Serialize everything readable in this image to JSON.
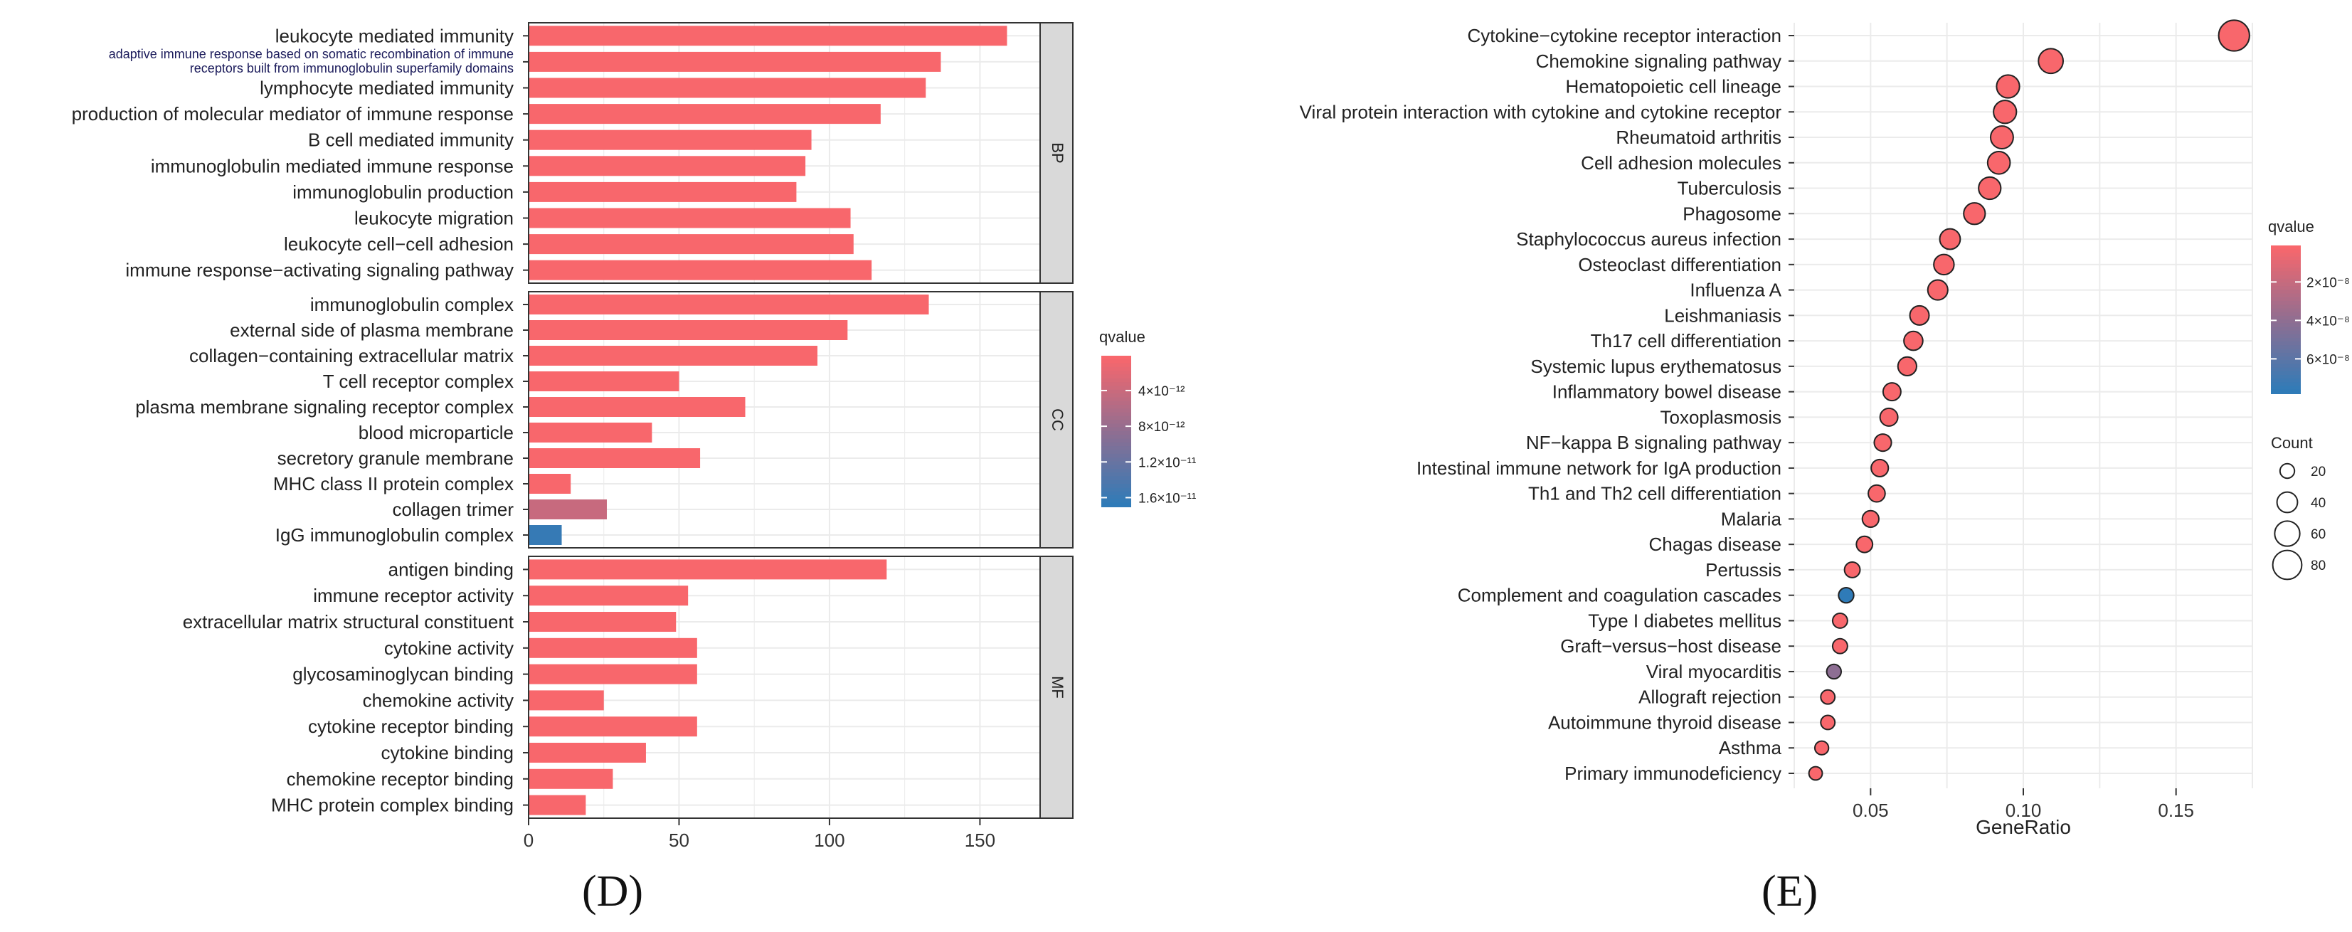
{
  "panel_labels": {
    "left": "(D)",
    "right": "(E)"
  },
  "colors": {
    "high": "#F8676C",
    "low": "#2A7CBA",
    "mid": "#8E6E92",
    "grid": "#EBEBEB",
    "strip": "#D9D9D9"
  },
  "chart_data": [
    {
      "type": "bar",
      "orientation": "horizontal",
      "title": "",
      "xlabel": "",
      "ylabel": "",
      "xlim": [
        0,
        170
      ],
      "x_ticks": [
        "0",
        "50",
        "100",
        "150"
      ],
      "legend": {
        "title": "qvalue",
        "ticks": [
          "4×10⁻¹²",
          "8×10⁻¹²",
          "1.2×10⁻¹¹",
          "1.6×10⁻¹¹"
        ],
        "range": [
          1e-13,
          1.7e-11
        ],
        "tick_values": [
          4e-12,
          8e-12,
          1.2e-11,
          1.6e-11
        ]
      },
      "facets": [
        {
          "name": "BP",
          "categories": [
            "leukocyte mediated immunity",
            "adaptive immune response based on somatic recombination of immune receptors built from immunoglobulin superfamily domains",
            "lymphocyte mediated immunity",
            "production of molecular mediator of immune response",
            "B cell mediated immunity",
            "immunoglobulin mediated immune response",
            "immunoglobulin production",
            "leukocyte migration",
            "leukocyte cell-cell adhesion",
            "immune response-activating signaling pathway"
          ],
          "category_lines": [
            [
              "leukocyte mediated immunity"
            ],
            [
              "adaptive immune response based on somatic recombination of immune",
              "receptors built from immunoglobulin superfamily domains"
            ],
            [
              "lymphocyte mediated immunity"
            ],
            [
              "production of molecular mediator of immune response"
            ],
            [
              "B cell mediated immunity"
            ],
            [
              "immunoglobulin mediated immune response"
            ],
            [
              "immunoglobulin production"
            ],
            [
              "leukocyte migration"
            ],
            [
              "leukocyte cell−cell adhesion"
            ],
            [
              "immune response−activating signaling pathway"
            ]
          ],
          "values": [
            159,
            137,
            132,
            117,
            94,
            92,
            89,
            107,
            108,
            114
          ],
          "qvalues": [
            1e-13,
            1e-13,
            1e-13,
            1e-13,
            1e-13,
            1e-13,
            1e-13,
            1e-13,
            1e-13,
            1e-13
          ]
        },
        {
          "name": "CC",
          "categories": [
            "immunoglobulin complex",
            "external side of plasma membrane",
            "collagen-containing extracellular matrix",
            "T cell receptor complex",
            "plasma membrane signaling receptor complex",
            "blood microparticle",
            "secretory granule membrane",
            "MHC class II protein complex",
            "collagen trimer",
            "IgG immunoglobulin complex"
          ],
          "category_lines": [
            [
              "immunoglobulin complex"
            ],
            [
              "external side of plasma membrane"
            ],
            [
              "collagen−containing extracellular matrix"
            ],
            [
              "T cell receptor complex"
            ],
            [
              "plasma membrane signaling receptor complex"
            ],
            [
              "blood microparticle"
            ],
            [
              "secretory granule membrane"
            ],
            [
              "MHC class II protein complex"
            ],
            [
              "collagen trimer"
            ],
            [
              "IgG immunoglobulin complex"
            ]
          ],
          "values": [
            133,
            106,
            96,
            50,
            72,
            41,
            57,
            14,
            26,
            11
          ],
          "qvalues": [
            1e-13,
            1e-13,
            1e-13,
            1e-13,
            1e-13,
            1e-13,
            1e-13,
            1e-13,
            4e-12,
            1.6e-11
          ]
        },
        {
          "name": "MF",
          "categories": [
            "antigen binding",
            "immune receptor activity",
            "extracellular matrix structural constituent",
            "cytokine activity",
            "glycosaminoglycan binding",
            "chemokine activity",
            "cytokine receptor binding",
            "cytokine binding",
            "chemokine receptor binding",
            "MHC protein complex binding"
          ],
          "category_lines": [
            [
              "antigen binding"
            ],
            [
              "immune receptor activity"
            ],
            [
              "extracellular matrix structural constituent"
            ],
            [
              "cytokine activity"
            ],
            [
              "glycosaminoglycan binding"
            ],
            [
              "chemokine activity"
            ],
            [
              "cytokine receptor binding"
            ],
            [
              "cytokine binding"
            ],
            [
              "chemokine receptor binding"
            ],
            [
              "MHC protein complex binding"
            ]
          ],
          "values": [
            119,
            53,
            49,
            56,
            56,
            25,
            56,
            39,
            28,
            19
          ],
          "qvalues": [
            1e-13,
            1e-13,
            1e-13,
            1e-13,
            1e-13,
            1e-13,
            1e-13,
            1e-13,
            1e-13,
            1e-13
          ]
        }
      ]
    },
    {
      "type": "scatter",
      "title": "",
      "xlabel": "GeneRatio",
      "ylabel": "",
      "xlim": [
        0.025,
        0.175
      ],
      "x_ticks": [
        0.05,
        0.1,
        0.15
      ],
      "x_tick_labels": [
        "0.05",
        "0.10",
        "0.15"
      ],
      "categories": [
        "Cytokine-cytokine receptor interaction",
        "Chemokine signaling pathway",
        "Hematopoietic cell lineage",
        "Viral protein interaction with cytokine and cytokine receptor",
        "Rheumatoid arthritis",
        "Cell adhesion molecules",
        "Tuberculosis",
        "Phagosome",
        "Staphylococcus aureus infection",
        "Osteoclast differentiation",
        "Influenza A",
        "Leishmaniasis",
        "Th17 cell differentiation",
        "Systemic lupus erythematosus",
        "Inflammatory bowel disease",
        "Toxoplasmosis",
        "NF-kappa B signaling pathway",
        "Intestinal immune network for IgA production",
        "Th1 and Th2 cell differentiation",
        "Malaria",
        "Chagas disease",
        "Pertussis",
        "Complement and coagulation cascades",
        "Type I diabetes mellitus",
        "Graft-versus-host disease",
        "Viral myocarditis",
        "Allograft rejection",
        "Autoimmune thyroid disease",
        "Asthma",
        "Primary immunodeficiency"
      ],
      "category_labels": [
        "Cytokine−cytokine receptor interaction",
        "Chemokine signaling pathway",
        "Hematopoietic cell lineage",
        "Viral protein interaction with cytokine and cytokine receptor",
        "Rheumatoid arthritis",
        "Cell adhesion molecules",
        "Tuberculosis",
        "Phagosome",
        "Staphylococcus aureus infection",
        "Osteoclast differentiation",
        "Influenza A",
        "Leishmaniasis",
        "Th17 cell differentiation",
        "Systemic lupus erythematosus",
        "Inflammatory bowel disease",
        "Toxoplasmosis",
        "NF−kappa B signaling pathway",
        "Intestinal immune network for IgA production",
        "Th1 and Th2 cell differentiation",
        "Malaria",
        "Chagas disease",
        "Pertussis",
        "Complement and coagulation cascades",
        "Type I diabetes mellitus",
        "Graft−versus−host disease",
        "Viral myocarditis",
        "Allograft rejection",
        "Autoimmune thyroid disease",
        "Asthma",
        "Primary immunodeficiency"
      ],
      "x": [
        0.169,
        0.109,
        0.095,
        0.094,
        0.093,
        0.092,
        0.089,
        0.084,
        0.076,
        0.074,
        0.072,
        0.066,
        0.064,
        0.062,
        0.057,
        0.056,
        0.054,
        0.053,
        0.052,
        0.05,
        0.048,
        0.044,
        0.042,
        0.04,
        0.04,
        0.038,
        0.036,
        0.036,
        0.034,
        0.032
      ],
      "count": [
        90,
        58,
        50,
        50,
        49,
        48,
        47,
        44,
        40,
        39,
        38,
        35,
        34,
        33,
        30,
        30,
        28,
        28,
        27,
        26,
        25,
        23,
        22,
        21,
        21,
        20,
        19,
        19,
        18,
        17
      ],
      "qvalues": [
        1e-09,
        1e-09,
        1e-09,
        1e-09,
        1e-09,
        1e-09,
        1e-09,
        1e-09,
        1e-09,
        1e-09,
        1e-09,
        1e-09,
        1e-09,
        1e-09,
        1e-09,
        1e-09,
        1e-09,
        1e-09,
        1e-09,
        1e-09,
        1e-09,
        1e-09,
        7.6e-08,
        1e-09,
        1e-09,
        4e-08,
        1e-09,
        1e-09,
        1e-09,
        1e-09
      ],
      "legend_color": {
        "title": "qvalue",
        "ticks": [
          "2×10⁻⁸",
          "4×10⁻⁸",
          "6×10⁻⁸"
        ],
        "range": [
          1e-09,
          7.8e-08
        ],
        "tick_values": [
          2e-08,
          4e-08,
          6e-08
        ]
      },
      "legend_size": {
        "title": "Count",
        "values": [
          20,
          40,
          60,
          80
        ],
        "labels": [
          "20",
          "40",
          "60",
          "80"
        ]
      }
    }
  ]
}
